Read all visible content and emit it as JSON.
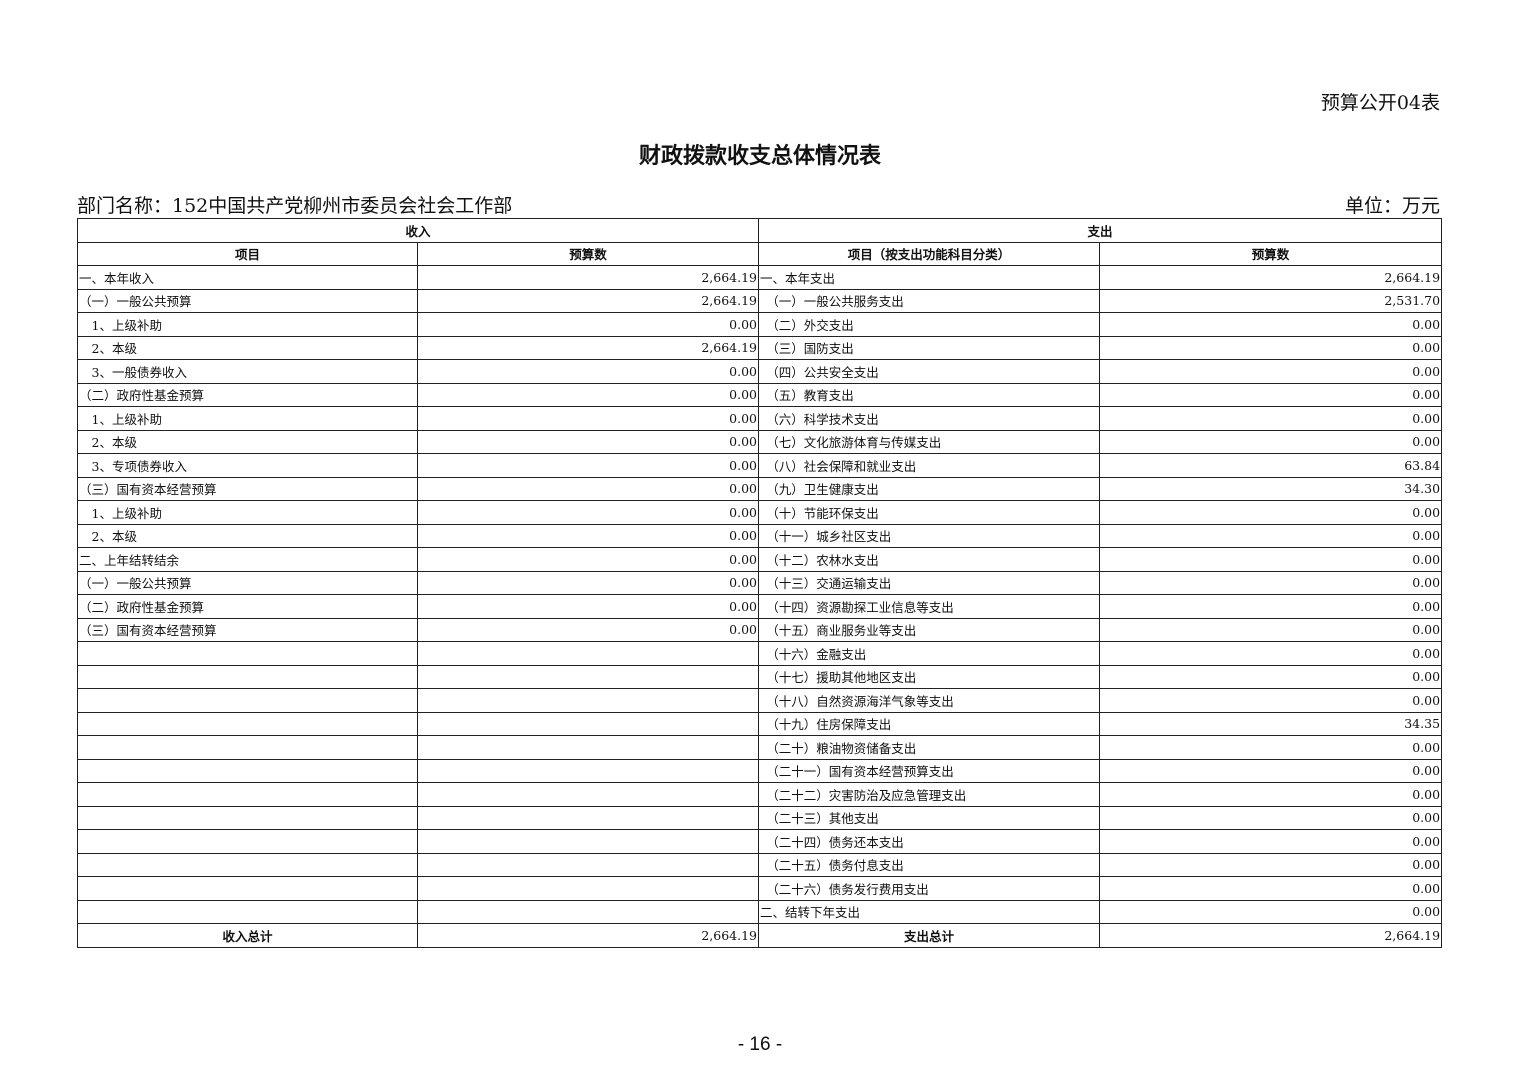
{
  "form_id": "预算公开04表",
  "title": "财政拨款收支总体情况表",
  "department": "部门名称：152中国共产党柳州市委员会社会工作部",
  "unit": "单位：万元",
  "headers": {
    "income": "收入",
    "expense": "支出",
    "income_item": "项目",
    "income_amount": "预算数",
    "expense_item": "项目（按支出功能科目分类）",
    "expense_amount": "预算数"
  },
  "income_rows": [
    {
      "item": "一、本年收入",
      "amount": "2,664.19"
    },
    {
      "item": "（一）一般公共预算",
      "amount": "2,664.19"
    },
    {
      "item": "　1、上级补助",
      "amount": "0.00"
    },
    {
      "item": "　2、本级",
      "amount": "2,664.19"
    },
    {
      "item": "　3、一般债券收入",
      "amount": "0.00"
    },
    {
      "item": "（二）政府性基金预算",
      "amount": "0.00"
    },
    {
      "item": "　1、上级补助",
      "amount": "0.00"
    },
    {
      "item": "　2、本级",
      "amount": "0.00"
    },
    {
      "item": "　3、专项债券收入",
      "amount": "0.00"
    },
    {
      "item": "（三）国有资本经营预算",
      "amount": "0.00"
    },
    {
      "item": "　1、上级补助",
      "amount": "0.00"
    },
    {
      "item": "　2、本级",
      "amount": "0.00"
    },
    {
      "item": "二、上年结转结余",
      "amount": "0.00"
    },
    {
      "item": "（一）一般公共预算",
      "amount": "0.00"
    },
    {
      "item": "（二）政府性基金预算",
      "amount": "0.00"
    },
    {
      "item": "（三）国有资本经营预算",
      "amount": "0.00"
    }
  ],
  "expense_rows": [
    {
      "item": "一、本年支出",
      "amount": "2,664.19"
    },
    {
      "item": "　（一）一般公共服务支出",
      "amount": "2,531.70"
    },
    {
      "item": "　（二）外交支出",
      "amount": "0.00"
    },
    {
      "item": "　（三）国防支出",
      "amount": "0.00"
    },
    {
      "item": "　（四）公共安全支出",
      "amount": "0.00"
    },
    {
      "item": "　（五）教育支出",
      "amount": "0.00"
    },
    {
      "item": "　（六）科学技术支出",
      "amount": "0.00"
    },
    {
      "item": "　（七）文化旅游体育与传媒支出",
      "amount": "0.00"
    },
    {
      "item": "　（八）社会保障和就业支出",
      "amount": "63.84"
    },
    {
      "item": "　（九）卫生健康支出",
      "amount": "34.30"
    },
    {
      "item": "　（十）节能环保支出",
      "amount": "0.00"
    },
    {
      "item": "　（十一）城乡社区支出",
      "amount": "0.00"
    },
    {
      "item": "　（十二）农林水支出",
      "amount": "0.00"
    },
    {
      "item": "　（十三）交通运输支出",
      "amount": "0.00"
    },
    {
      "item": "　（十四）资源勘探工业信息等支出",
      "amount": "0.00"
    },
    {
      "item": "　（十五）商业服务业等支出",
      "amount": "0.00"
    },
    {
      "item": "　（十六）金融支出",
      "amount": "0.00"
    },
    {
      "item": "　（十七）援助其他地区支出",
      "amount": "0.00"
    },
    {
      "item": "　（十八）自然资源海洋气象等支出",
      "amount": "0.00"
    },
    {
      "item": "　（十九）住房保障支出",
      "amount": "34.35"
    },
    {
      "item": "　（二十）粮油物资储备支出",
      "amount": "0.00"
    },
    {
      "item": "　（二十一）国有资本经营预算支出",
      "amount": "0.00"
    },
    {
      "item": "　（二十二）灾害防治及应急管理支出",
      "amount": "0.00"
    },
    {
      "item": "　（二十三）其他支出",
      "amount": "0.00"
    },
    {
      "item": "　（二十四）债务还本支出",
      "amount": "0.00"
    },
    {
      "item": "　（二十五）债务付息支出",
      "amount": "0.00"
    },
    {
      "item": "　（二十六）债务发行费用支出",
      "amount": "0.00"
    },
    {
      "item": "二、结转下年支出",
      "amount": "0.00"
    }
  ],
  "totals": {
    "income_label": "收入总计",
    "income_amount": "2,664.19",
    "expense_label": "支出总计",
    "expense_amount": "2,664.19"
  },
  "page_number": "- 16 -"
}
